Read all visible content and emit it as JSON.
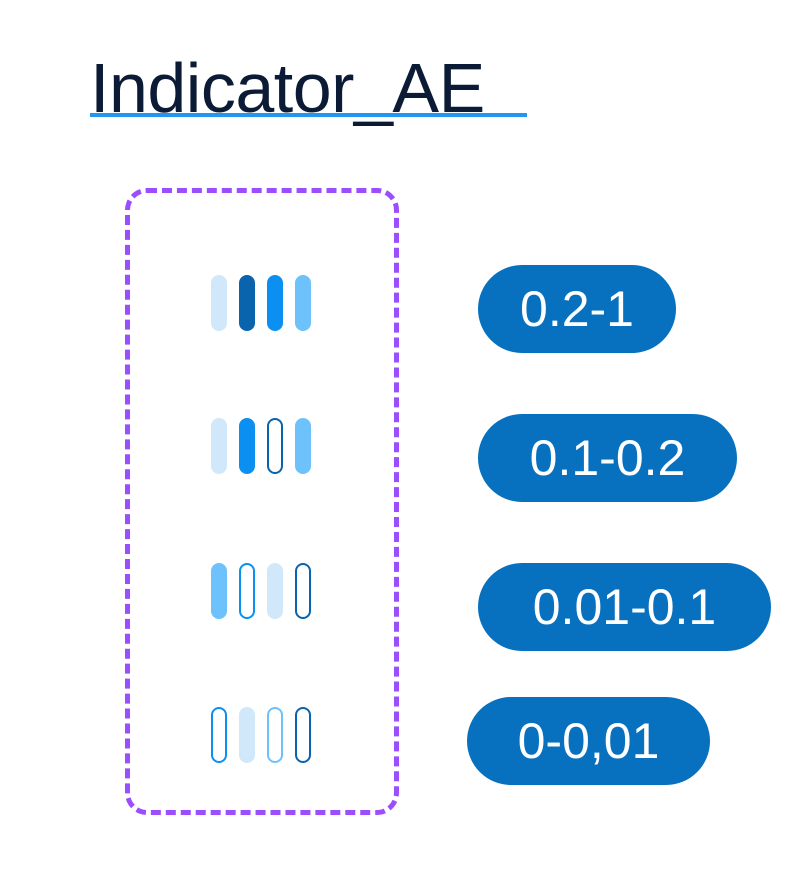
{
  "title": "Indicator_AE",
  "colors": {
    "title_text": "#0c1b35",
    "title_underline": "#2196f3",
    "dashed_border": "#9b4dff",
    "pill_background": "#0771bf",
    "pill_text": "#ffffff"
  },
  "rows": [
    {
      "label": "0.2-1",
      "bars": [
        {
          "fill": "#d0e8fa",
          "outline": "none"
        },
        {
          "fill": "#0a63ad",
          "outline": "none"
        },
        {
          "fill": "#0b8ff0",
          "outline": "none"
        },
        {
          "fill": "#6dc2fb",
          "outline": "none"
        }
      ]
    },
    {
      "label": "0.1-0.2",
      "bars": [
        {
          "fill": "#d0e8fa",
          "outline": "none"
        },
        {
          "fill": "#0b8ff0",
          "outline": "none"
        },
        {
          "fill": "none",
          "outline": "#0a63ad"
        },
        {
          "fill": "#6dc2fb",
          "outline": "none"
        }
      ]
    },
    {
      "label": "0.01-0.1",
      "bars": [
        {
          "fill": "#6dc2fb",
          "outline": "none"
        },
        {
          "fill": "none",
          "outline": "#0b8ff0"
        },
        {
          "fill": "#d0e8fa",
          "outline": "none"
        },
        {
          "fill": "none",
          "outline": "#0a63ad"
        }
      ]
    },
    {
      "label": "0-0,01",
      "bars": [
        {
          "fill": "none",
          "outline": "#0b8ff0"
        },
        {
          "fill": "#d0e8fa",
          "outline": "none"
        },
        {
          "fill": "none",
          "outline": "#6dc2fb"
        },
        {
          "fill": "none",
          "outline": "#0a63ad"
        }
      ]
    }
  ]
}
